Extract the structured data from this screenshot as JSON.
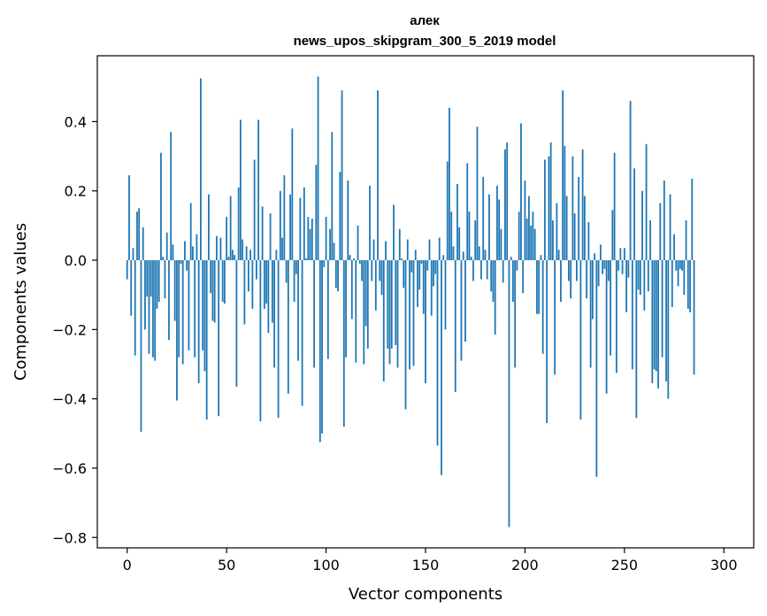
{
  "chart_data": {
    "type": "bar",
    "title": "алек",
    "subtitle": "news_upos_skipgram_300_5_2019 model",
    "xlabel": "Vector components",
    "ylabel": "Components values",
    "xlim": [
      -15,
      315
    ],
    "ylim": [
      -0.83,
      0.59
    ],
    "x_ticks": [
      0,
      50,
      100,
      150,
      200,
      250,
      300
    ],
    "x_tick_labels": [
      "0",
      "50",
      "100",
      "150",
      "200",
      "250",
      "300"
    ],
    "y_ticks": [
      -0.8,
      -0.6,
      -0.4,
      -0.2,
      0.0,
      0.2,
      0.4
    ],
    "y_tick_labels": [
      "−0.8",
      "−0.6",
      "−0.4",
      "−0.2",
      "0.0",
      "0.2",
      "0.4"
    ],
    "grid": false,
    "bar_color": "#1f77b4",
    "values": [
      -0.055,
      0.245,
      -0.16,
      0.035,
      -0.275,
      0.14,
      0.15,
      -0.495,
      0.095,
      -0.2,
      -0.105,
      -0.27,
      -0.105,
      -0.28,
      -0.29,
      -0.14,
      -0.12,
      0.31,
      0.01,
      -0.11,
      0.08,
      -0.23,
      0.37,
      0.045,
      -0.175,
      -0.405,
      -0.28,
      -0.01,
      -0.3,
      0.055,
      -0.03,
      -0.26,
      0.165,
      0.04,
      -0.28,
      0.075,
      -0.355,
      0.525,
      -0.26,
      -0.32,
      -0.46,
      0.19,
      -0.095,
      -0.175,
      -0.18,
      0.07,
      -0.45,
      0.065,
      -0.12,
      -0.125,
      0.125,
      0.01,
      0.185,
      0.03,
      0.015,
      -0.365,
      0.21,
      0.405,
      0.06,
      -0.185,
      0.04,
      -0.09,
      0.03,
      -0.14,
      0.29,
      -0.055,
      0.405,
      -0.465,
      0.155,
      -0.14,
      -0.125,
      -0.21,
      0.135,
      -0.18,
      -0.31,
      0.03,
      -0.455,
      0.2,
      0.065,
      0.245,
      -0.065,
      -0.385,
      0.19,
      0.38,
      -0.12,
      -0.04,
      -0.29,
      0.18,
      -0.42,
      0.21,
      0.005,
      0.125,
      0.09,
      0.12,
      -0.31,
      0.275,
      0.53,
      -0.525,
      -0.5,
      -0.02,
      0.125,
      -0.285,
      0.09,
      0.37,
      0.05,
      -0.08,
      -0.09,
      0.255,
      0.49,
      -0.48,
      -0.28,
      0.23,
      0.015,
      -0.17,
      0.005,
      -0.295,
      0.1,
      -0.01,
      -0.06,
      -0.3,
      -0.19,
      -0.255,
      0.215,
      -0.06,
      0.06,
      -0.145,
      0.49,
      -0.06,
      -0.1,
      -0.35,
      0.055,
      -0.255,
      -0.3,
      -0.255,
      0.16,
      -0.245,
      -0.31,
      0.09,
      0.005,
      -0.08,
      -0.43,
      0.06,
      -0.315,
      -0.035,
      -0.305,
      0.03,
      -0.135,
      -0.085,
      -0.01,
      -0.155,
      -0.355,
      -0.03,
      0.06,
      -0.16,
      -0.075,
      -0.04,
      -0.535,
      0.065,
      -0.62,
      0.015,
      -0.2,
      0.285,
      0.44,
      0.14,
      0.04,
      -0.38,
      0.22,
      0.095,
      -0.29,
      0.025,
      -0.235,
      0.28,
      0.14,
      0.01,
      -0.06,
      0.115,
      0.385,
      0.04,
      -0.055,
      0.24,
      0.03,
      -0.055,
      0.19,
      -0.09,
      -0.12,
      -0.215,
      0.215,
      0.175,
      0.09,
      -0.065,
      0.32,
      0.34,
      -0.77,
      0.01,
      -0.12,
      -0.31,
      -0.03,
      0.14,
      0.395,
      -0.095,
      0.23,
      0.12,
      0.185,
      0.1,
      0.14,
      0.09,
      -0.155,
      -0.155,
      0.015,
      -0.27,
      0.29,
      -0.47,
      0.3,
      0.34,
      0.115,
      -0.33,
      0.165,
      0.03,
      -0.12,
      0.49,
      0.33,
      0.185,
      -0.06,
      -0.11,
      0.3,
      0.135,
      -0.06,
      0.24,
      -0.46,
      0.32,
      0.185,
      -0.11,
      0.11,
      -0.31,
      -0.17,
      0.02,
      -0.625,
      -0.075,
      0.045,
      -0.04,
      -0.025,
      -0.385,
      -0.06,
      -0.275,
      0.145,
      0.31,
      -0.325,
      -0.03,
      0.035,
      -0.04,
      0.035,
      -0.15,
      -0.05,
      0.46,
      -0.315,
      0.265,
      -0.455,
      -0.085,
      -0.1,
      0.2,
      -0.145,
      0.335,
      -0.09,
      0.115,
      -0.355,
      -0.315,
      -0.32,
      -0.37,
      0.165,
      -0.28,
      0.23,
      -0.35,
      -0.4,
      0.19,
      -0.135,
      0.075,
      -0.03,
      -0.075,
      -0.025,
      -0.03,
      -0.1,
      0.115,
      -0.14,
      -0.15,
      0.235,
      -0.33
    ]
  }
}
